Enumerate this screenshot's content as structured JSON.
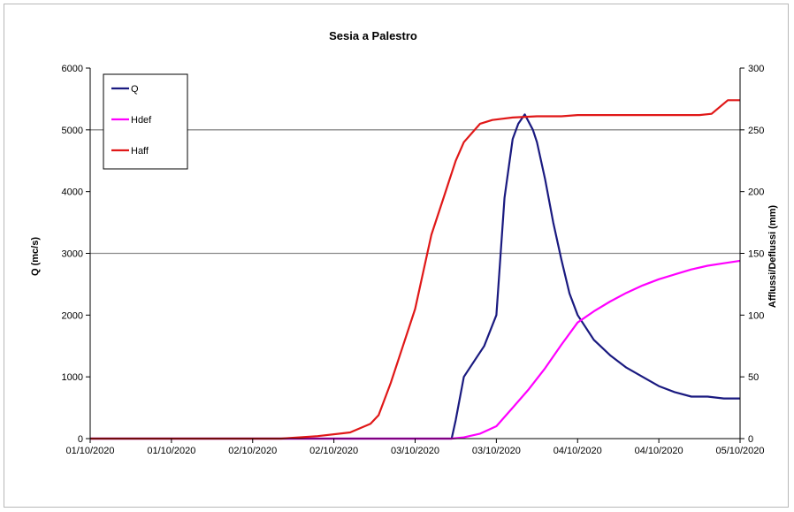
{
  "chart_data": {
    "type": "line",
    "title": "Sesia a Palestro",
    "ylabel": "Q (mc/s)",
    "y2label": "Afflussi/Deflussi (mm)",
    "ylim": [
      0,
      6000
    ],
    "y2lim": [
      0,
      300
    ],
    "yticks": [
      0,
      1000,
      2000,
      3000,
      4000,
      5000,
      6000
    ],
    "y2ticks": [
      0,
      50,
      100,
      150,
      200,
      250,
      300
    ],
    "xtick_labels": [
      "01/10/2020",
      "01/10/2020",
      "02/10/2020",
      "02/10/2020",
      "03/10/2020",
      "03/10/2020",
      "04/10/2020",
      "04/10/2020",
      "05/10/2020"
    ],
    "xlim": [
      0,
      8
    ],
    "grid": "horizontal major lines at 3000 and 5000",
    "legend_position": "top-left",
    "series": [
      {
        "name": "Q",
        "axis": "left",
        "color": "#1a1a80",
        "x": [
          0,
          4.45,
          4.5,
          4.6,
          4.7,
          4.85,
          5.0,
          5.1,
          5.2,
          5.27,
          5.35,
          5.45,
          5.5,
          5.6,
          5.7,
          5.8,
          5.9,
          6.0,
          6.2,
          6.4,
          6.6,
          6.8,
          7.0,
          7.2,
          7.4,
          7.6,
          7.8,
          8.0
        ],
        "y": [
          0,
          0,
          300,
          1000,
          1200,
          1500,
          2000,
          3900,
          4850,
          5100,
          5250,
          5000,
          4800,
          4200,
          3500,
          2900,
          2350,
          2000,
          1600,
          1350,
          1150,
          1000,
          850,
          750,
          680,
          680,
          650,
          650
        ]
      },
      {
        "name": "Hdef",
        "axis": "right",
        "color": "#ff00ff",
        "x": [
          0,
          4.45,
          4.6,
          4.8,
          5.0,
          5.2,
          5.4,
          5.6,
          5.8,
          6.0,
          6.2,
          6.4,
          6.6,
          6.8,
          7.0,
          7.2,
          7.4,
          7.6,
          7.8,
          8.0
        ],
        "y": [
          0,
          0,
          1,
          4,
          10,
          25,
          40,
          57,
          76,
          94,
          103,
          111,
          118,
          124,
          129,
          133,
          137,
          140,
          142,
          144
        ]
      },
      {
        "name": "Haff",
        "axis": "right",
        "color": "#e01818",
        "x": [
          0,
          2.35,
          2.8,
          3.2,
          3.45,
          3.55,
          3.7,
          3.85,
          4.0,
          4.1,
          4.2,
          4.35,
          4.5,
          4.6,
          4.8,
          4.95,
          5.2,
          5.5,
          5.8,
          6.0,
          6.5,
          7.0,
          7.5,
          7.65,
          7.85,
          8.0
        ],
        "y": [
          0,
          0,
          2,
          5,
          12,
          19,
          45,
          75,
          105,
          135,
          165,
          195,
          225,
          240,
          255,
          258,
          260,
          261,
          261,
          262,
          262,
          262,
          262,
          263,
          274,
          274
        ]
      }
    ]
  }
}
